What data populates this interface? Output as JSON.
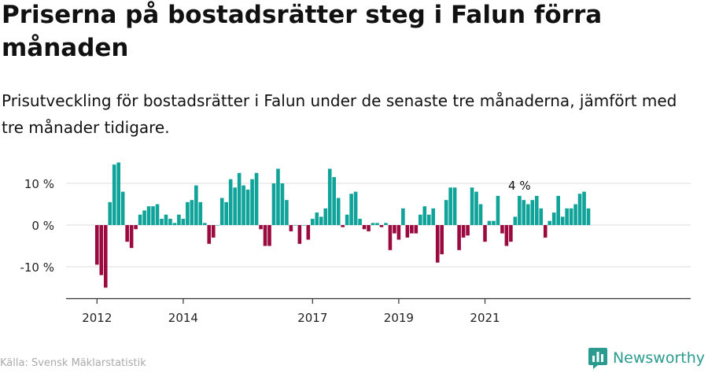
{
  "title": "Priserna på bostadsrätter steg i Falun förra månaden",
  "subtitle": "Prisutveckling för bostadsrätter i Falun under de senaste tre månaderna, jämfört med tre månader tidigare.",
  "source": "Källa: Svensk Mäklarstatistik",
  "brand": "Newsworthy",
  "colors": {
    "positive": "#0fa39a",
    "negative": "#9b0a3e",
    "grid": "#dddddd",
    "axis": "#333333",
    "brand": "#2b9b8f"
  },
  "chart_data": {
    "type": "bar",
    "ylabel": "",
    "xlabel": "",
    "ylim": [
      -18,
      18
    ],
    "yticks": [
      {
        "v": 10,
        "label": "10 %"
      },
      {
        "v": 0,
        "label": "0 %"
      },
      {
        "v": -10,
        "label": "-10 %"
      }
    ],
    "xticks": [
      {
        "index": 0,
        "label": "2012"
      },
      {
        "index": 20,
        "label": "2014"
      },
      {
        "index": 50,
        "label": "2017"
      },
      {
        "index": 70,
        "label": "2019"
      },
      {
        "index": 90,
        "label": "2021"
      }
    ],
    "annotation": {
      "index": 98,
      "label": "4 %"
    },
    "values": [
      -9.5,
      -12,
      -15,
      5.5,
      14.5,
      15,
      8,
      -4,
      -5.5,
      -1,
      2.5,
      3.5,
      4.5,
      4.5,
      5,
      1.5,
      2.5,
      1.5,
      0.5,
      2.5,
      1.5,
      5.5,
      6,
      9.5,
      5.5,
      0.5,
      -4.5,
      -3,
      0,
      6.5,
      5.5,
      11,
      9,
      12.5,
      9.5,
      8.5,
      11,
      12.5,
      -1,
      -5,
      -5,
      10,
      13.5,
      10,
      6,
      -1.5,
      0,
      -4.5,
      0,
      -3.5,
      1.5,
      3,
      2,
      4,
      13.5,
      11.5,
      6.5,
      -0.5,
      2.5,
      7.5,
      8,
      1.5,
      -1,
      -1.5,
      0.5,
      0.5,
      -0.5,
      0.5,
      -6,
      -2,
      -3.5,
      4,
      -3,
      -2,
      -2,
      2.5,
      4.5,
      2.5,
      4,
      -9,
      -7,
      6,
      9,
      9,
      -6,
      -3,
      -2.5,
      9,
      8,
      5,
      -4,
      1,
      1,
      7,
      -2,
      -5,
      -4,
      2,
      7,
      6,
      5,
      6,
      7,
      4,
      -3,
      1,
      3,
      7,
      2,
      4,
      4,
      5,
      7.5,
      8,
      4
    ]
  }
}
